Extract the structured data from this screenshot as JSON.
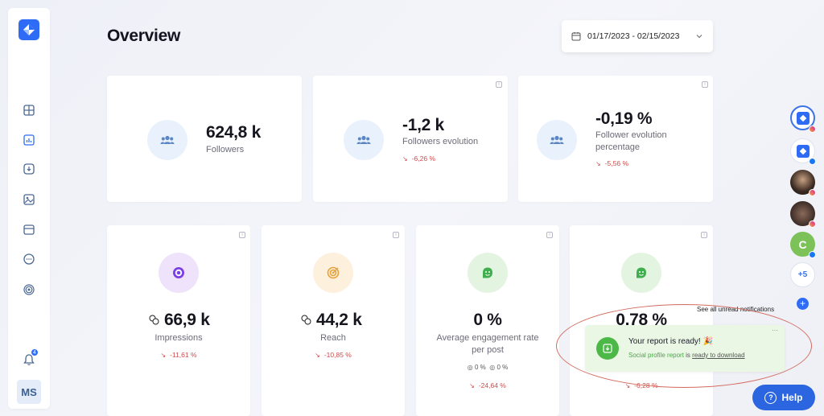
{
  "header": {
    "title": "Overview",
    "date_range": "01/17/2023 - 02/15/2023"
  },
  "sidebar": {
    "items": [
      "dashboard-icon",
      "chart-icon",
      "download-icon",
      "image-icon",
      "calendar-icon",
      "message-icon",
      "target-icon"
    ],
    "notification_count": "4",
    "user_initials": "MS"
  },
  "cards_top": [
    {
      "value": "624,8 k",
      "label": "Followers",
      "delta": ""
    },
    {
      "value": "-1,2 k",
      "label": "Followers evolution",
      "delta": "-6,26 %"
    },
    {
      "value": "-0,19 %",
      "label_line1": "Follower evolution",
      "label_line2": "percentage",
      "delta": "-5,56 %"
    }
  ],
  "cards_bottom": [
    {
      "value": "66,9 k",
      "label": "Impressions",
      "delta": "-11,61 %"
    },
    {
      "value": "44,2 k",
      "label": "Reach",
      "delta": "-10,85 %"
    },
    {
      "value": "0 %",
      "label_line1": "Average engagement rate",
      "label_line2": "per post",
      "sub1": "0 %",
      "sub2": "0 %",
      "delta": "-24,64 %"
    },
    {
      "value": "0,78 %",
      "delta": "-6,28 %"
    }
  ],
  "rail": {
    "more_count": "+5",
    "letter_avatar": "C"
  },
  "notification": {
    "see_all": "See all unread notifications",
    "title": "Your report is ready! 🎉",
    "body_prefix": "Social profile report",
    "body_mid": "is",
    "body_link": "ready to download"
  },
  "help": {
    "label": "Help"
  },
  "colors": {
    "accent": "#2b66e0",
    "negative": "#d04a4a",
    "icon_blue_bg": "#e8f1fc",
    "purple_bg": "#efe3fb",
    "orange_bg": "#fdf0dc",
    "green_bg": "#e3f5e1",
    "notif_bg": "#e9f7e4"
  }
}
